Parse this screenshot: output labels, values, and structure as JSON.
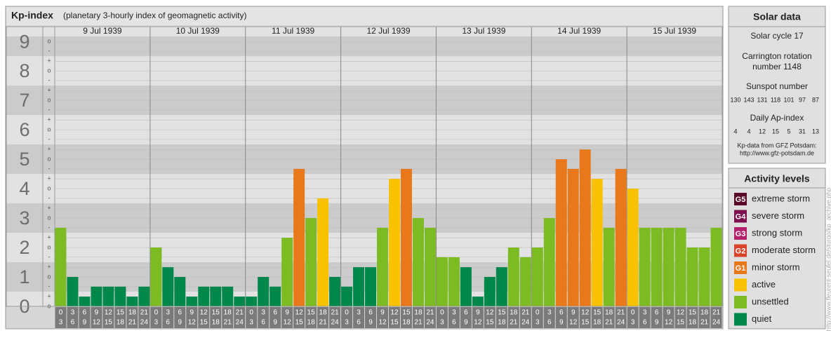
{
  "chart_data": {
    "type": "bar",
    "title": "Kp-index",
    "subtitle": "(planetary 3-hourly index of geomagnetic activity)",
    "ylim": [
      0,
      9.17
    ],
    "yticks": [
      0,
      1,
      2,
      3,
      4,
      5,
      6,
      7,
      8,
      9
    ],
    "minor_yticks": [
      {
        "value": 0,
        "label": "o"
      },
      {
        "value": 0.33,
        "label": "+"
      },
      {
        "value": 0.67,
        "label": "-"
      },
      {
        "value": 1,
        "label": "o"
      },
      {
        "value": 1.33,
        "label": "+"
      },
      {
        "value": 1.67,
        "label": "-"
      },
      {
        "value": 2,
        "label": "o"
      },
      {
        "value": 2.33,
        "label": "+"
      },
      {
        "value": 2.67,
        "label": "-"
      },
      {
        "value": 3,
        "label": "o"
      },
      {
        "value": 3.33,
        "label": "+"
      },
      {
        "value": 3.67,
        "label": "-"
      },
      {
        "value": 4,
        "label": "o"
      },
      {
        "value": 4.33,
        "label": "+"
      },
      {
        "value": 4.67,
        "label": "-"
      },
      {
        "value": 5,
        "label": "o"
      },
      {
        "value": 5.33,
        "label": "+"
      },
      {
        "value": 5.67,
        "label": "-"
      },
      {
        "value": 6,
        "label": "o"
      },
      {
        "value": 6.33,
        "label": "+"
      },
      {
        "value": 6.67,
        "label": "-"
      },
      {
        "value": 7,
        "label": "o"
      },
      {
        "value": 7.33,
        "label": "+"
      },
      {
        "value": 7.67,
        "label": "-"
      },
      {
        "value": 8,
        "label": "o"
      },
      {
        "value": 8.33,
        "label": "+"
      },
      {
        "value": 8.67,
        "label": "-"
      },
      {
        "value": 9,
        "label": "o"
      }
    ],
    "hours": [
      [
        0,
        3
      ],
      [
        3,
        6
      ],
      [
        6,
        9
      ],
      [
        9,
        12
      ],
      [
        12,
        15
      ],
      [
        15,
        18
      ],
      [
        18,
        21
      ],
      [
        21,
        24
      ]
    ],
    "days": [
      {
        "date": "9 Jul 1939",
        "values": [
          2.67,
          1,
          0.33,
          0.67,
          0.67,
          0.67,
          0.33,
          0.67
        ],
        "colors": [
          "#7dbb23",
          "#00874a",
          "#00874a",
          "#00874a",
          "#00874a",
          "#00874a",
          "#00874a",
          "#00874a"
        ]
      },
      {
        "date": "10 Jul 1939",
        "values": [
          2,
          1.33,
          1,
          0.33,
          0.67,
          0.67,
          0.67,
          0.33
        ],
        "colors": [
          "#7dbb23",
          "#00874a",
          "#00874a",
          "#00874a",
          "#00874a",
          "#00874a",
          "#00874a",
          "#00874a"
        ]
      },
      {
        "date": "11 Jul 1939",
        "values": [
          0.33,
          1,
          0.67,
          2.33,
          4.67,
          3,
          3.67,
          1
        ],
        "colors": [
          "#00874a",
          "#00874a",
          "#00874a",
          "#7dbb23",
          "#e8781a",
          "#7dbb23",
          "#f8c200",
          "#00874a"
        ]
      },
      {
        "date": "12 Jul 1939",
        "values": [
          0.67,
          1.33,
          1.33,
          2.67,
          4.33,
          4.67,
          3,
          2.67
        ],
        "colors": [
          "#00874a",
          "#00874a",
          "#00874a",
          "#7dbb23",
          "#f8c200",
          "#e8781a",
          "#7dbb23",
          "#7dbb23"
        ]
      },
      {
        "date": "13 Jul 1939",
        "values": [
          1.67,
          1.67,
          1.33,
          0.33,
          1,
          1.33,
          2,
          1.67
        ],
        "colors": [
          "#7dbb23",
          "#7dbb23",
          "#00874a",
          "#00874a",
          "#00874a",
          "#00874a",
          "#7dbb23",
          "#7dbb23"
        ]
      },
      {
        "date": "14 Jul 1939",
        "values": [
          2,
          3,
          5,
          4.67,
          5.33,
          4.33,
          2.67,
          4.67
        ],
        "colors": [
          "#7dbb23",
          "#7dbb23",
          "#e8781a",
          "#e8781a",
          "#e8781a",
          "#f8c200",
          "#7dbb23",
          "#e8781a"
        ]
      },
      {
        "date": "15 Jul 1939",
        "values": [
          4,
          2.67,
          2.67,
          2.67,
          2.67,
          2,
          2,
          2.67
        ],
        "colors": [
          "#f8c200",
          "#7dbb23",
          "#7dbb23",
          "#7dbb23",
          "#7dbb23",
          "#7dbb23",
          "#7dbb23",
          "#7dbb23"
        ]
      }
    ]
  },
  "solar_data": {
    "title": "Solar data",
    "cycle": "Solar cycle 17",
    "carrington": [
      "Carrington rotation",
      "number 1148"
    ],
    "sunspot_label": "Sunspot number",
    "sunspot_numbers": [
      130,
      143,
      131,
      118,
      101,
      97,
      87
    ],
    "ap_label": "Daily Ap-index",
    "ap_values": [
      4,
      4,
      12,
      15,
      5,
      31,
      13
    ],
    "source": [
      "Kp-data from GFZ Potsdam:",
      "http://www.gfz-potsdam.de"
    ]
  },
  "activity_levels": {
    "title": "Activity levels",
    "items": [
      {
        "code": "G5",
        "name": "extreme storm",
        "color": "#5a0a28"
      },
      {
        "code": "G4",
        "name": "severe storm",
        "color": "#7d1150"
      },
      {
        "code": "G3",
        "name": "strong storm",
        "color": "#b3206c"
      },
      {
        "code": "G2",
        "name": "moderate storm",
        "color": "#d8432a"
      },
      {
        "code": "G1",
        "name": "minor storm",
        "color": "#e8781a"
      },
      {
        "name": "active",
        "color": "#f8c200"
      },
      {
        "name": "unsettled",
        "color": "#7dbb23"
      },
      {
        "name": "quiet",
        "color": "#00874a"
      }
    ]
  },
  "watermark": "http://www.fleurent-seufel.de/sturgo/kp_archive.php"
}
